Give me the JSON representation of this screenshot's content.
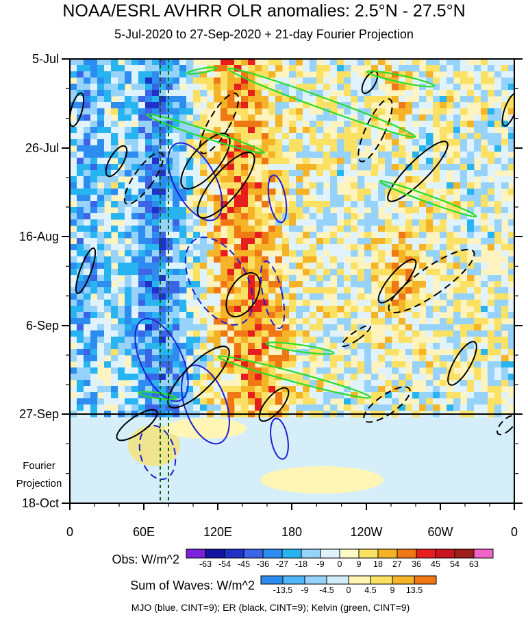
{
  "chart_data": {
    "type": "heatmap",
    "title": "NOAA/ESRL AVHRR OLR anomalies: 2.5°N - 27.5°N",
    "subtitle": "5-Jul-2020 to 27-Sep-2020 + 21-day Fourier Projection",
    "x_ticks": [
      "0",
      "60E",
      "120E",
      "180",
      "120W",
      "60W",
      "0"
    ],
    "y_ticks": [
      "5-Jul",
      "26-Jul",
      "16-Aug",
      "6-Sep",
      "27-Sep",
      "18-Oct"
    ],
    "projection_label": [
      "Fourier",
      "Projection"
    ],
    "obs_colorbar": {
      "label": "Obs: W/m^2",
      "levels": [
        "-63",
        "-54",
        "-45",
        "-36",
        "-27",
        "-18",
        "-9",
        "0",
        "9",
        "18",
        "27",
        "36",
        "45",
        "54",
        "63"
      ],
      "colors": [
        "#7a22dc",
        "#1414a0",
        "#1e32c8",
        "#3c64e6",
        "#2d8cf0",
        "#28b4f0",
        "#96d2fa",
        "#e0f3fc",
        "#fffac8",
        "#fae164",
        "#f5b428",
        "#f07814",
        "#e61e1e",
        "#c8141e",
        "#a01e1e",
        "#f064c8"
      ]
    },
    "waves_colorbar": {
      "label": "Sum of Waves: W/m^2",
      "levels": [
        "-13.5",
        "-9",
        "-4.5",
        "0",
        "4.5",
        "9",
        "13.5"
      ],
      "colors": [
        "#2d8cf0",
        "#50b4f5",
        "#96d2fa",
        "#d2ecfa",
        "#fff5b4",
        "#fae164",
        "#f5b428",
        "#f07814"
      ]
    },
    "legend": "MJO (blue, CINT=9); ER (black, CINT=9); Kelvin (green, CINT=9)",
    "grid": false,
    "wave_colors": {
      "mjo": "#1e1ed2",
      "er": "#000000",
      "kelvin": "#28dc28"
    }
  }
}
